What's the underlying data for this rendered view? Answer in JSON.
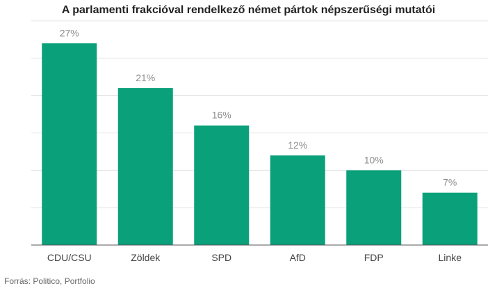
{
  "chart_data": {
    "type": "bar",
    "title": "A parlamenti frakcióval rendelkező német pártok népszerűségi mutatói",
    "categories": [
      "CDU/CSU",
      "Zöldek",
      "SPD",
      "AfD",
      "FDP",
      "Linke"
    ],
    "values": [
      27,
      21,
      16,
      12,
      10,
      7
    ],
    "value_labels": [
      "27%",
      "21%",
      "16%",
      "12%",
      "10%",
      "7%"
    ],
    "ylim": [
      0,
      30
    ],
    "grid": true,
    "colors": {
      "bar": "#0aa07a"
    }
  },
  "source": "Forrás:  Politico, Portfolio"
}
